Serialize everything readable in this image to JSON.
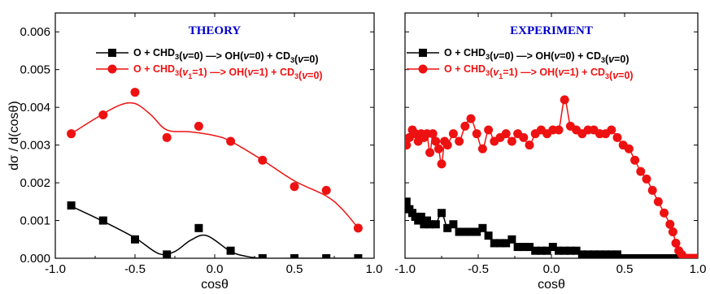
{
  "chart_data": [
    {
      "type": "line",
      "title": "THEORY",
      "title_color": "#0000cc",
      "xlabel": "cosθ",
      "ylabel": "dσ / d(cosθ)",
      "xlim": [
        -1.0,
        1.0
      ],
      "ylim": [
        0.0,
        0.0065
      ],
      "x_ticks": [
        "-1.0",
        "-0.5",
        "0.0",
        "0.5",
        "1.0"
      ],
      "y_ticks": [
        "0.000",
        "0.001",
        "0.002",
        "0.003",
        "0.004",
        "0.005",
        "0.006"
      ],
      "legend_position": "top-right",
      "series": [
        {
          "name": "O + CHD3(v=0) —> OH(v=0) + CD3(v=0)",
          "color": "#000000",
          "marker": "square",
          "x": [
            -0.9,
            -0.7,
            -0.5,
            -0.3,
            -0.1,
            0.1,
            0.3,
            0.5,
            0.7,
            0.9
          ],
          "y": [
            0.0014,
            0.001,
            0.0005,
            0.0001,
            0.0008,
            0.0002,
            0.0,
            0.0,
            0.0,
            0.0
          ],
          "curve_x": [
            -0.9,
            -0.7,
            -0.5,
            -0.35,
            -0.25,
            -0.15,
            -0.05,
            0.1,
            0.2,
            0.3,
            0.5,
            0.7,
            0.9
          ],
          "curve_y": [
            0.00138,
            0.00098,
            0.00054,
            0.00012,
            0.00018,
            0.00048,
            0.0006,
            0.00018,
            5e-05,
            0.0,
            0.0,
            0.0,
            0.0
          ]
        },
        {
          "name": "O + CHD3(v1=1) —> OH(v=1) + CD3(v=0)",
          "color": "#ee1111",
          "marker": "circle",
          "x": [
            -0.9,
            -0.7,
            -0.5,
            -0.3,
            -0.1,
            0.1,
            0.3,
            0.5,
            0.7,
            0.9
          ],
          "y": [
            0.0033,
            0.0038,
            0.0044,
            0.0032,
            0.0035,
            0.0031,
            0.0026,
            0.0019,
            0.0018,
            0.0008
          ],
          "curve_x": [
            -0.9,
            -0.75,
            -0.6,
            -0.5,
            -0.4,
            -0.3,
            -0.15,
            0.0,
            0.1,
            0.3,
            0.5,
            0.7,
            0.8,
            0.9
          ],
          "curve_y": [
            0.0033,
            0.0037,
            0.00405,
            0.0041,
            0.0038,
            0.0034,
            0.00335,
            0.00325,
            0.0031,
            0.0026,
            0.00205,
            0.00165,
            0.0013,
            0.0008
          ]
        }
      ]
    },
    {
      "type": "line",
      "title": "EXPERIMENT",
      "title_color": "#0000cc",
      "xlabel": "cosθ",
      "xlim": [
        -1.0,
        1.0
      ],
      "ylim": [
        0.0,
        0.0065
      ],
      "x_ticks": [
        "-1.0",
        "-0.5",
        "0.0",
        "0.5",
        "1.0"
      ],
      "legend_position": "top-right",
      "series": [
        {
          "name": "O + CHD3(v=0) —> OH(v=0) + CD3(v=0)",
          "color": "#000000",
          "marker": "square",
          "x": [
            -0.99,
            -0.97,
            -0.95,
            -0.93,
            -0.91,
            -0.89,
            -0.87,
            -0.85,
            -0.83,
            -0.79,
            -0.75,
            -0.71,
            -0.67,
            -0.63,
            -0.59,
            -0.55,
            -0.51,
            -0.47,
            -0.43,
            -0.39,
            -0.35,
            -0.31,
            -0.27,
            -0.23,
            -0.19,
            -0.15,
            -0.11,
            -0.07,
            -0.03,
            0.01,
            0.05,
            0.09,
            0.13,
            0.17,
            0.21,
            0.25,
            0.29,
            0.33,
            0.37,
            0.41,
            0.45,
            0.49,
            0.53,
            0.57,
            0.61,
            0.65,
            0.69,
            0.73,
            0.77,
            0.81,
            0.85,
            0.89,
            0.93,
            0.97
          ],
          "y": [
            0.0015,
            0.0013,
            0.0012,
            0.0011,
            0.001,
            0.0011,
            0.0009,
            0.001,
            0.0009,
            0.0009,
            0.0012,
            0.0008,
            0.0009,
            0.0007,
            0.0007,
            0.0007,
            0.0007,
            0.0008,
            0.0006,
            0.0004,
            0.0004,
            0.0004,
            0.0005,
            0.0003,
            0.0003,
            0.0003,
            0.0002,
            0.0002,
            0.0002,
            0.0003,
            0.0002,
            0.0002,
            0.0002,
            0.0002,
            0.0001,
            0.0001,
            0.0001,
            0.0001,
            0.0001,
            0.0001,
            0.0001,
            0.0,
            0.0,
            0.0,
            0.0,
            0.0,
            0.0,
            0.0,
            0.0,
            0.0,
            0.0,
            0.0,
            0.0,
            0.0
          ]
        },
        {
          "name": "O + CHD3(v1=1) —> OH(v=1) + CD3(v=0)",
          "color": "#ee1111",
          "marker": "circle",
          "x": [
            -0.99,
            -0.97,
            -0.95,
            -0.93,
            -0.91,
            -0.89,
            -0.87,
            -0.85,
            -0.83,
            -0.81,
            -0.79,
            -0.77,
            -0.75,
            -0.73,
            -0.71,
            -0.67,
            -0.63,
            -0.59,
            -0.55,
            -0.51,
            -0.47,
            -0.43,
            -0.39,
            -0.35,
            -0.31,
            -0.27,
            -0.23,
            -0.19,
            -0.15,
            -0.11,
            -0.07,
            -0.03,
            0.01,
            0.05,
            0.09,
            0.13,
            0.17,
            0.21,
            0.25,
            0.29,
            0.33,
            0.37,
            0.41,
            0.45,
            0.49,
            0.53,
            0.57,
            0.61,
            0.65,
            0.69,
            0.73,
            0.77,
            0.81,
            0.83,
            0.85,
            0.87,
            0.89,
            0.91,
            0.93,
            0.95,
            0.97,
            0.99
          ],
          "y": [
            0.003,
            0.0032,
            0.0034,
            0.0033,
            0.0031,
            0.0033,
            0.0032,
            0.0033,
            0.0028,
            0.0033,
            0.0031,
            0.0029,
            0.0025,
            0.0031,
            0.003,
            0.0033,
            0.0031,
            0.0035,
            0.0037,
            0.0033,
            0.0029,
            0.0034,
            0.0031,
            0.0032,
            0.0033,
            0.0031,
            0.0033,
            0.0032,
            0.003,
            0.0033,
            0.0034,
            0.0033,
            0.0034,
            0.0034,
            0.0042,
            0.0035,
            0.0034,
            0.0033,
            0.0034,
            0.0034,
            0.0033,
            0.0033,
            0.0034,
            0.0032,
            0.003,
            0.0029,
            0.0026,
            0.0023,
            0.0021,
            0.0018,
            0.0015,
            0.0012,
            0.0009,
            0.0007,
            0.0004,
            0.0002,
            0.0001,
            0.0,
            0.0,
            0.0,
            0.0,
            0.0
          ]
        }
      ]
    }
  ]
}
